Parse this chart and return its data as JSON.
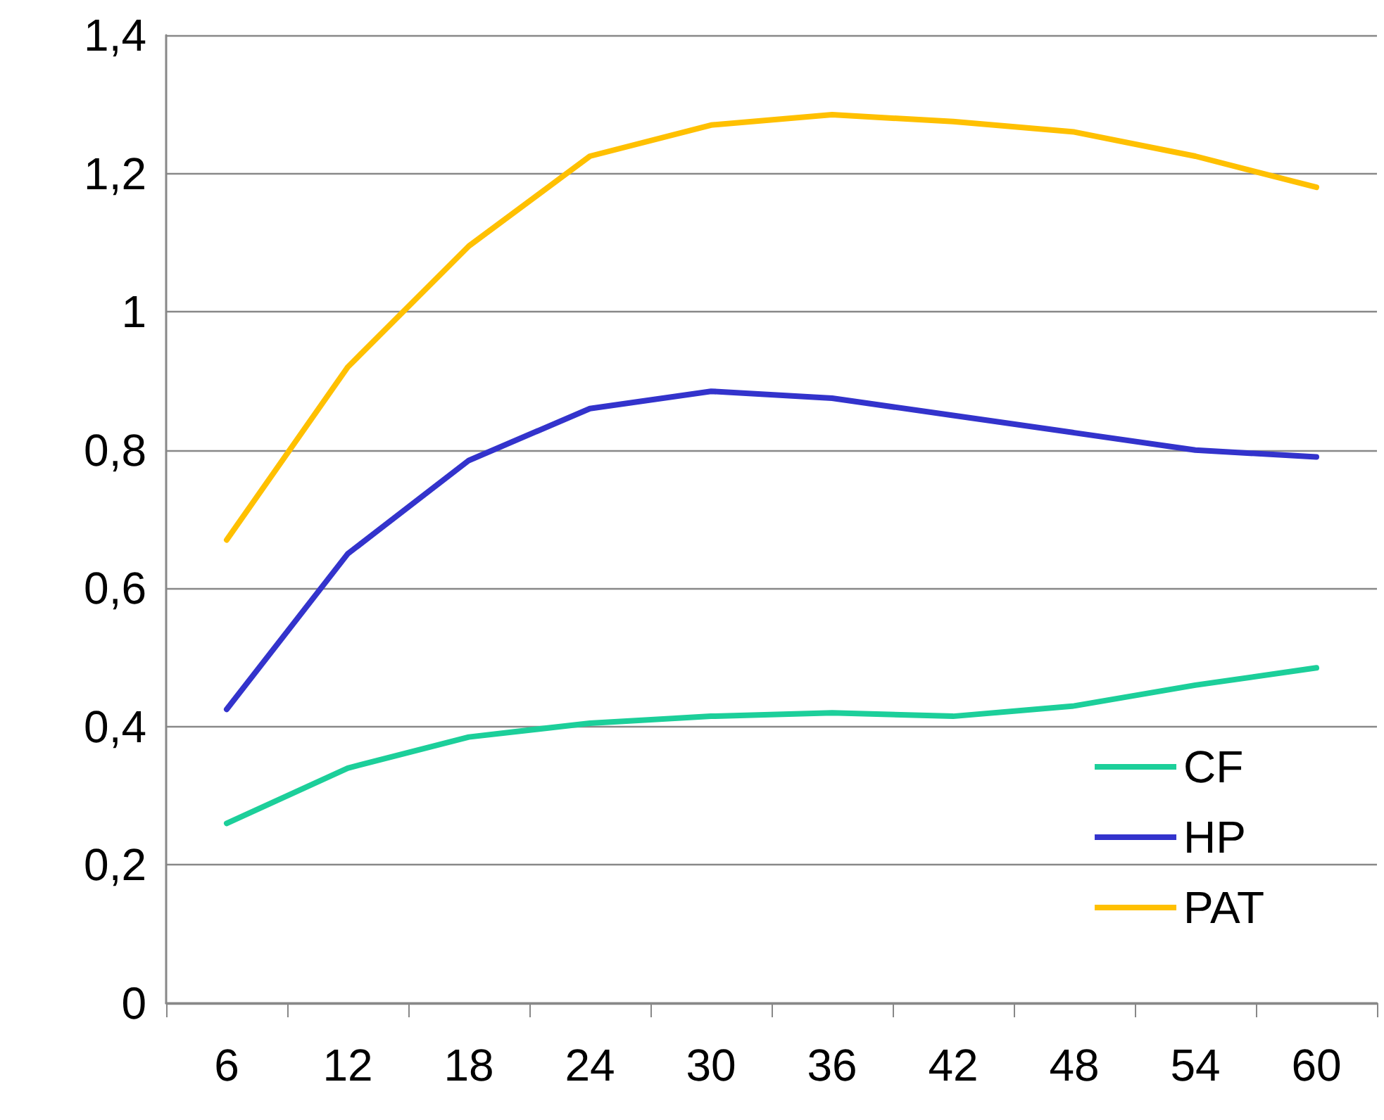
{
  "chart_data": {
    "type": "line",
    "categories": [
      "6",
      "12",
      "18",
      "24",
      "30",
      "36",
      "42",
      "48",
      "54",
      "60"
    ],
    "series": [
      {
        "name": "CF",
        "color": "#1ccf9a",
        "values": [
          0.26,
          0.34,
          0.385,
          0.405,
          0.415,
          0.42,
          0.415,
          0.43,
          0.46,
          0.485
        ]
      },
      {
        "name": "HP",
        "color": "#3333cc",
        "values": [
          0.425,
          0.65,
          0.785,
          0.86,
          0.885,
          0.875,
          0.85,
          0.825,
          0.8,
          0.79
        ]
      },
      {
        "name": "PAT",
        "color": "#ffc000",
        "values": [
          0.67,
          0.92,
          1.095,
          1.225,
          1.27,
          1.285,
          1.275,
          1.26,
          1.225,
          1.18
        ]
      }
    ],
    "ylim": [
      0,
      1.4
    ],
    "yticks": [
      0,
      {
        "value": 0.2,
        "label": "0,2"
      },
      {
        "value": 0.4,
        "label": "0,4"
      },
      {
        "value": 0.6,
        "label": "0,6"
      },
      {
        "value": 0.8,
        "label": "0,8"
      },
      1,
      {
        "value": 1.2,
        "label": "1,2"
      },
      {
        "value": 1.4,
        "label": "1,4"
      }
    ],
    "grid": "y",
    "legend": "bottom right",
    "marker": "none",
    "line_style": "solid"
  }
}
